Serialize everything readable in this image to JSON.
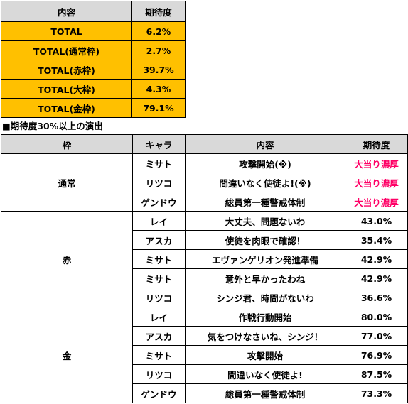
{
  "summary": {
    "header": {
      "content": "内容",
      "expectation": "期待度"
    },
    "rows": [
      {
        "content": "TOTAL",
        "value": "6.2%"
      },
      {
        "content": "TOTAL(通常枠)",
        "value": "2.7%"
      },
      {
        "content": "TOTAL(赤枠)",
        "value": "39.7%"
      },
      {
        "content": "TOTAL(大枠)",
        "value": "4.3%"
      },
      {
        "content": "TOTAL(金枠)",
        "value": "79.1%"
      }
    ]
  },
  "section_heading": "■期待度30%以上の演出",
  "detail": {
    "header": {
      "frame": "枠",
      "chara": "キャラ",
      "content": "内容",
      "expectation": "期待度"
    },
    "groups": [
      {
        "frame": "通常",
        "rows": [
          {
            "chara": "ミサト",
            "content": "攻撃開始(※)",
            "value": "大当り濃厚"
          },
          {
            "chara": "リツコ",
            "content": "間違いなく使徒よ!(※)",
            "value": "大当り濃厚"
          },
          {
            "chara": "ゲンドウ",
            "content": "総員第一種警戒体制",
            "value": "大当り濃厚"
          }
        ]
      },
      {
        "frame": "赤",
        "rows": [
          {
            "chara": "レイ",
            "content": "大丈夫、問題ないわ",
            "value": "43.0%"
          },
          {
            "chara": "アスカ",
            "content": "使徒を肉眼で確認！",
            "value": "35.4%"
          },
          {
            "chara": "ミサト",
            "content": "エヴァンゲリオン発進準備",
            "value": "42.9%"
          },
          {
            "chara": "ミサト",
            "content": "意外と早かったわね",
            "value": "42.9%"
          },
          {
            "chara": "リツコ",
            "content": "シンジ君、時間がないわ",
            "value": "36.6%"
          }
        ]
      },
      {
        "frame": "金",
        "rows": [
          {
            "chara": "レイ",
            "content": "作戦行動開始",
            "value": "80.0%"
          },
          {
            "chara": "アスカ",
            "content": "気をつけなさいね、シンジ！",
            "value": "77.0%"
          },
          {
            "chara": "ミサト",
            "content": "攻撃開始",
            "value": "76.9%"
          },
          {
            "chara": "リツコ",
            "content": "間違いなく使徒よ!",
            "value": "87.5%"
          },
          {
            "chara": "ゲンドウ",
            "content": "総員第一種警戒体制",
            "value": "73.3%"
          }
        ]
      }
    ]
  },
  "colors": {
    "gold": "#ffc000",
    "header_gray": "#d9d9d9",
    "highlight_pink": "#ff0066"
  }
}
